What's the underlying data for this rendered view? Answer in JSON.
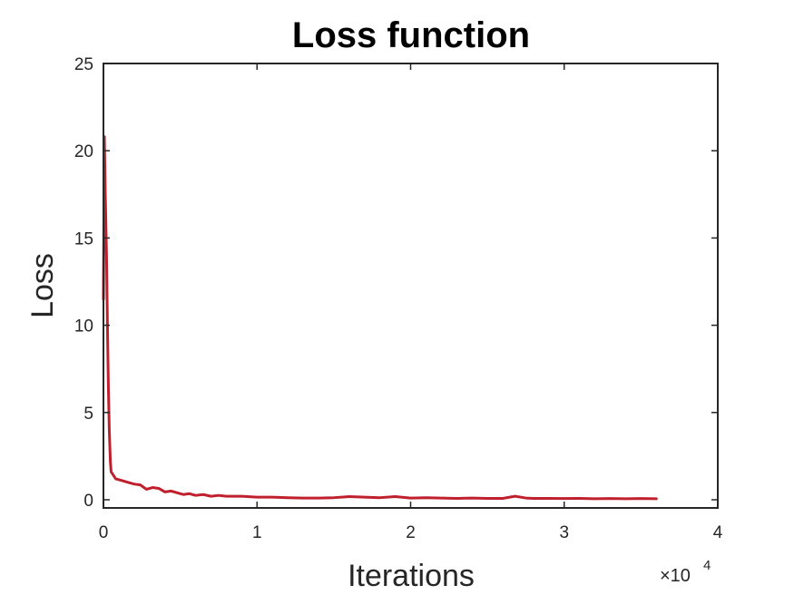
{
  "chart_data": {
    "type": "line",
    "title": "Loss function",
    "xlabel": "Iterations",
    "ylabel": "Loss",
    "xlim": [
      0,
      40000
    ],
    "ylim": [
      0,
      25
    ],
    "x_ticks": [
      0,
      10000,
      20000,
      30000,
      40000
    ],
    "x_tick_labels": [
      "0",
      "1",
      "2",
      "3",
      "4"
    ],
    "x_exponent": {
      "base": "×10",
      "power": "4"
    },
    "y_ticks": [
      0,
      5,
      10,
      15,
      20,
      25
    ],
    "y_tick_labels": [
      "0",
      "5",
      "10",
      "15",
      "20",
      "25"
    ],
    "grid": false,
    "box": true,
    "series": [
      {
        "color": "#c0202e",
        "x": [
          0,
          60,
          120,
          200,
          260,
          320,
          380,
          450,
          500,
          800,
          1200,
          1600,
          2000,
          2400,
          2800,
          3200,
          3600,
          4000,
          4400,
          4800,
          5200,
          5600,
          6000,
          6500,
          7000,
          7500,
          8000,
          9000,
          10000,
          11000,
          12000,
          13000,
          14000,
          15000,
          16000,
          17000,
          18000,
          19000,
          20000,
          21000,
          22000,
          23000,
          24000,
          25000,
          26000,
          26800,
          27500,
          28000,
          29000,
          30000,
          31000,
          32000,
          33000,
          34000,
          35000,
          36000
        ],
        "y": [
          11.5,
          20.8,
          17.5,
          14.0,
          10.0,
          6.5,
          4.0,
          2.2,
          1.6,
          1.2,
          1.1,
          1.0,
          0.9,
          0.85,
          0.6,
          0.7,
          0.65,
          0.45,
          0.5,
          0.4,
          0.3,
          0.35,
          0.25,
          0.3,
          0.2,
          0.25,
          0.2,
          0.2,
          0.15,
          0.15,
          0.12,
          0.1,
          0.1,
          0.12,
          0.18,
          0.15,
          0.12,
          0.18,
          0.1,
          0.12,
          0.1,
          0.08,
          0.1,
          0.08,
          0.08,
          0.2,
          0.1,
          0.08,
          0.08,
          0.07,
          0.08,
          0.06,
          0.07,
          0.06,
          0.07,
          0.06
        ]
      }
    ]
  }
}
